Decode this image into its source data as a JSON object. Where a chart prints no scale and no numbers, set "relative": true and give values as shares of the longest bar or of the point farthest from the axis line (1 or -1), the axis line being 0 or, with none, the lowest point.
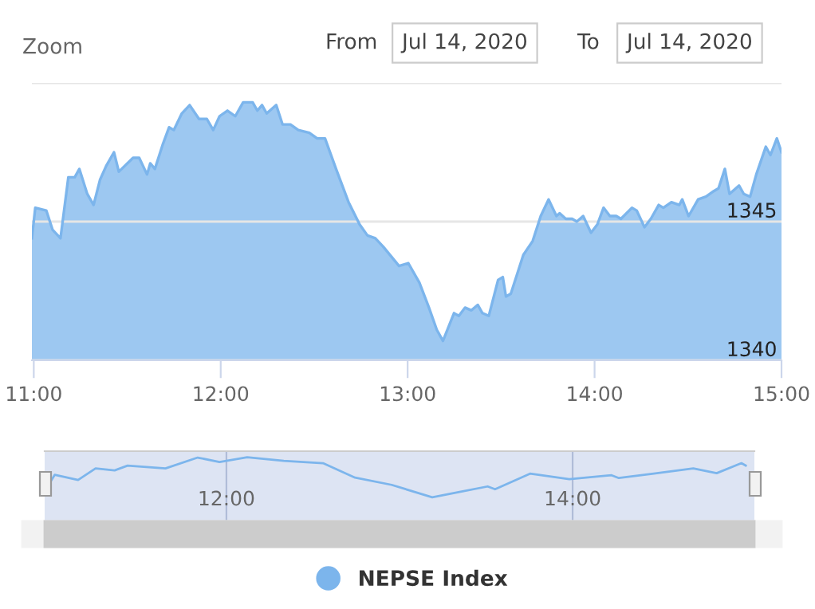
{
  "chart_data": [
    {
      "type": "area",
      "annotations": [
        "Zoom",
        "From",
        "Jul 14, 2020",
        "To",
        "Jul 14, 2020"
      ],
      "x": [
        10.99,
        11.008,
        11.067,
        11.101,
        11.143,
        11.185,
        11.219,
        11.244,
        11.286,
        11.32,
        11.354,
        11.387,
        11.429,
        11.455,
        11.531,
        11.564,
        11.606,
        11.623,
        11.648,
        11.691,
        11.724,
        11.749,
        11.792,
        11.834,
        11.884,
        11.926,
        11.96,
        11.994,
        12.036,
        12.078,
        12.12,
        12.171,
        12.196,
        12.221,
        12.246,
        12.297,
        12.331,
        12.373,
        12.415,
        12.474,
        12.516,
        12.558,
        12.617,
        12.684,
        12.743,
        12.785,
        12.827,
        12.869,
        12.954,
        13.004,
        13.063,
        13.114,
        13.156,
        13.189,
        13.248,
        13.274,
        13.307,
        13.341,
        13.375,
        13.4,
        13.434,
        13.484,
        13.509,
        13.526,
        13.552,
        13.619,
        13.669,
        13.712,
        13.754,
        13.796,
        13.813,
        13.846,
        13.88,
        13.905,
        13.939,
        13.981,
        14.015,
        14.048,
        14.082,
        14.116,
        14.141,
        14.2,
        14.225,
        14.267,
        14.301,
        14.343,
        14.368,
        14.411,
        14.453,
        14.469,
        14.503,
        14.554,
        14.596,
        14.638,
        14.663,
        14.697,
        14.722,
        14.773,
        14.798,
        14.832,
        14.865,
        14.916,
        14.941,
        14.975,
        15.0
      ],
      "series": [
        {
          "name": "NEPSE Index",
          "color": "#7cb5ec",
          "values": [
            1344.4,
            1345.5,
            1345.4,
            1344.7,
            1344.4,
            1346.6,
            1346.6,
            1346.9,
            1346.0,
            1345.6,
            1346.5,
            1347.0,
            1347.5,
            1346.8,
            1347.3,
            1347.3,
            1346.7,
            1347.1,
            1346.9,
            1347.8,
            1348.4,
            1348.3,
            1348.9,
            1349.2,
            1348.7,
            1348.7,
            1348.3,
            1348.8,
            1349.0,
            1348.8,
            1349.3,
            1349.3,
            1349.0,
            1349.2,
            1348.9,
            1349.2,
            1348.5,
            1348.5,
            1348.3,
            1348.2,
            1348.0,
            1348.0,
            1346.9,
            1345.7,
            1344.9,
            1344.5,
            1344.4,
            1344.1,
            1343.4,
            1343.5,
            1342.8,
            1341.9,
            1341.1,
            1340.7,
            1341.7,
            1341.6,
            1341.9,
            1341.8,
            1342.0,
            1341.7,
            1341.6,
            1342.9,
            1343.0,
            1342.3,
            1342.4,
            1343.8,
            1344.3,
            1345.2,
            1345.8,
            1345.2,
            1345.3,
            1345.1,
            1345.1,
            1345.0,
            1345.2,
            1344.6,
            1344.9,
            1345.5,
            1345.2,
            1345.2,
            1345.1,
            1345.5,
            1345.4,
            1344.8,
            1345.1,
            1345.6,
            1345.5,
            1345.7,
            1345.6,
            1345.8,
            1345.2,
            1345.8,
            1345.9,
            1346.1,
            1346.2,
            1346.9,
            1346.0,
            1346.3,
            1346.0,
            1345.9,
            1346.7,
            1347.7,
            1347.4,
            1348.0,
            1347.5
          ]
        }
      ],
      "xlim": [
        10.99,
        15.0
      ],
      "xticks": [
        {
          "value": 11,
          "label": "11:00"
        },
        {
          "value": 12,
          "label": "12:00"
        },
        {
          "value": 13,
          "label": "13:00"
        },
        {
          "value": 14,
          "label": "14:00"
        },
        {
          "value": 15,
          "label": "15:00"
        }
      ],
      "ylim": [
        1340,
        1350
      ],
      "yticks": [
        1340,
        1345,
        {
          "value": 1350,
          "label": null
        }
      ],
      "grid": "y",
      "legend": "bottom"
    },
    {
      "type": "line",
      "relative": true,
      "x": [
        10.99,
        11.008,
        11.143,
        11.244,
        11.354,
        11.429,
        11.648,
        11.834,
        11.96,
        12.12,
        12.331,
        12.558,
        12.743,
        12.954,
        13.189,
        13.341,
        13.509,
        13.552,
        13.754,
        13.981,
        14.225,
        14.267,
        14.469,
        14.697,
        14.832,
        14.975,
        15.0
      ],
      "series": [
        {
          "color": "#7cb5ec",
          "values": [
            0.43,
            0.56,
            0.43,
            0.72,
            0.67,
            0.79,
            0.72,
            0.99,
            0.88,
            1,
            0.91,
            0.85,
            0.49,
            0.31,
            0,
            0.13,
            0.27,
            0.2,
            0.59,
            0.45,
            0.55,
            0.48,
            0.59,
            0.72,
            0.6,
            0.85,
            0.79
          ]
        }
      ],
      "xlim": [
        10.95,
        15.05
      ],
      "xticks": [
        {
          "value": 12,
          "label": "12:00"
        },
        {
          "value": 14,
          "label": "14:00"
        }
      ],
      "tick_labels": "x",
      "grid": "x"
    }
  ]
}
